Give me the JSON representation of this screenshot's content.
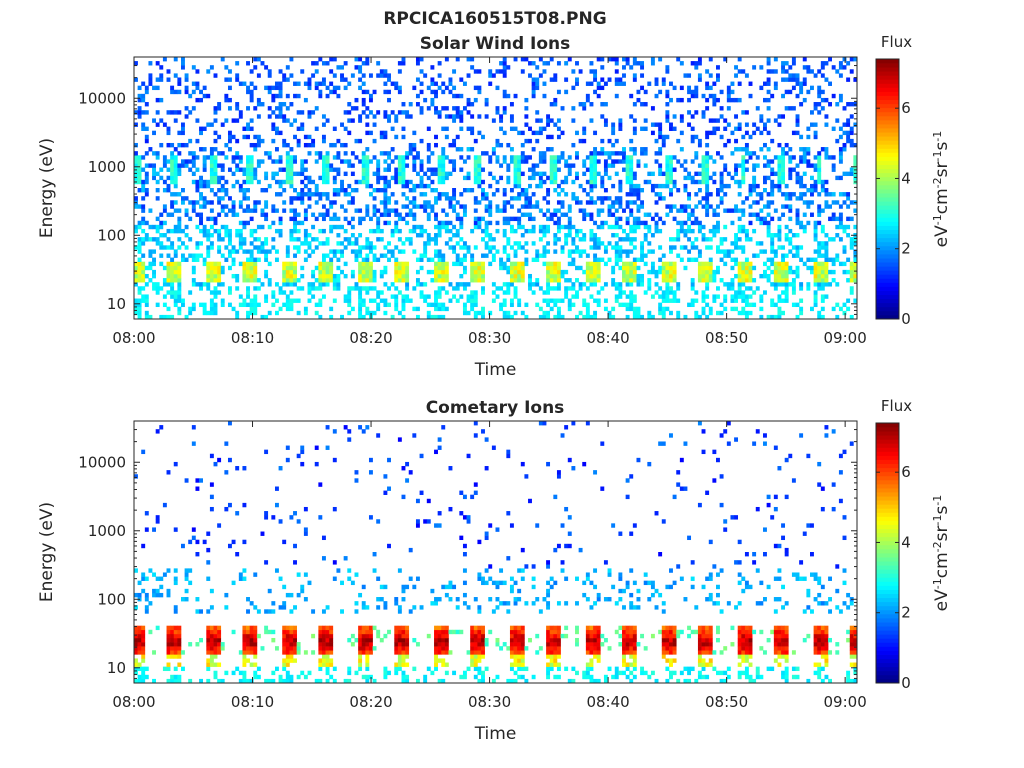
{
  "figure": {
    "title": "RPCICA160515T08.PNG"
  },
  "colors": {
    "colormap": "jet",
    "background": "#ffffff",
    "axis": "#262626"
  },
  "chart_data": [
    {
      "type": "heatmap",
      "title": "Solar Wind Ions",
      "xlabel": "Time",
      "ylabel": "Energy (eV)",
      "yscale": "log",
      "x_range": [
        "08:00",
        "09:01"
      ],
      "ylim": [
        6,
        40000
      ],
      "x_ticks": [
        "08:00",
        "08:10",
        "08:20",
        "08:30",
        "08:40",
        "08:50",
        "09:00"
      ],
      "y_ticks": [
        "10",
        "100",
        "1000",
        "10000"
      ],
      "colorbar": {
        "label": "Flux",
        "unit": "eV-1cm-2sr-1s-1",
        "range": [
          0,
          7.4
        ],
        "ticks": [
          "0",
          "2",
          "4",
          "6"
        ]
      },
      "features": [
        {
          "energy_range_eV": [
            20,
            40
          ],
          "flux_level": 4.3,
          "recurrence_min": 3.2,
          "description": "periodic bursts"
        },
        {
          "energy_range_eV": [
            600,
            1500
          ],
          "flux_level": 3.0,
          "recurrence_min": 3.2,
          "description": "periodic bursts"
        },
        {
          "energy_range_eV": [
            50,
            20000
          ],
          "flux_level": 1.6,
          "description": "scattered background counts"
        }
      ]
    },
    {
      "type": "heatmap",
      "title": "Cometary Ions",
      "xlabel": "Time",
      "ylabel": "Energy (eV)",
      "yscale": "log",
      "x_range": [
        "08:00",
        "09:01"
      ],
      "ylim": [
        6,
        40000
      ],
      "x_ticks": [
        "08:00",
        "08:10",
        "08:20",
        "08:30",
        "08:40",
        "08:50",
        "09:00"
      ],
      "y_ticks": [
        "10",
        "100",
        "1000",
        "10000"
      ],
      "colorbar": {
        "label": "Flux",
        "unit": "eV-1cm-2sr-1s-1",
        "range": [
          0,
          7.4
        ],
        "ticks": [
          "0",
          "2",
          "4",
          "6"
        ]
      },
      "features": [
        {
          "energy_range_eV": [
            15,
            40
          ],
          "flux_level": 5.8,
          "recurrence_min": 3.2,
          "description": "periodic bursts"
        },
        {
          "energy_range_eV": [
            60,
            300
          ],
          "flux_level": 2.1,
          "description": "scattered background counts"
        },
        {
          "energy_range_eV": [
            300,
            30000
          ],
          "flux_level": 1.0,
          "description": "sparse counts"
        }
      ]
    }
  ]
}
